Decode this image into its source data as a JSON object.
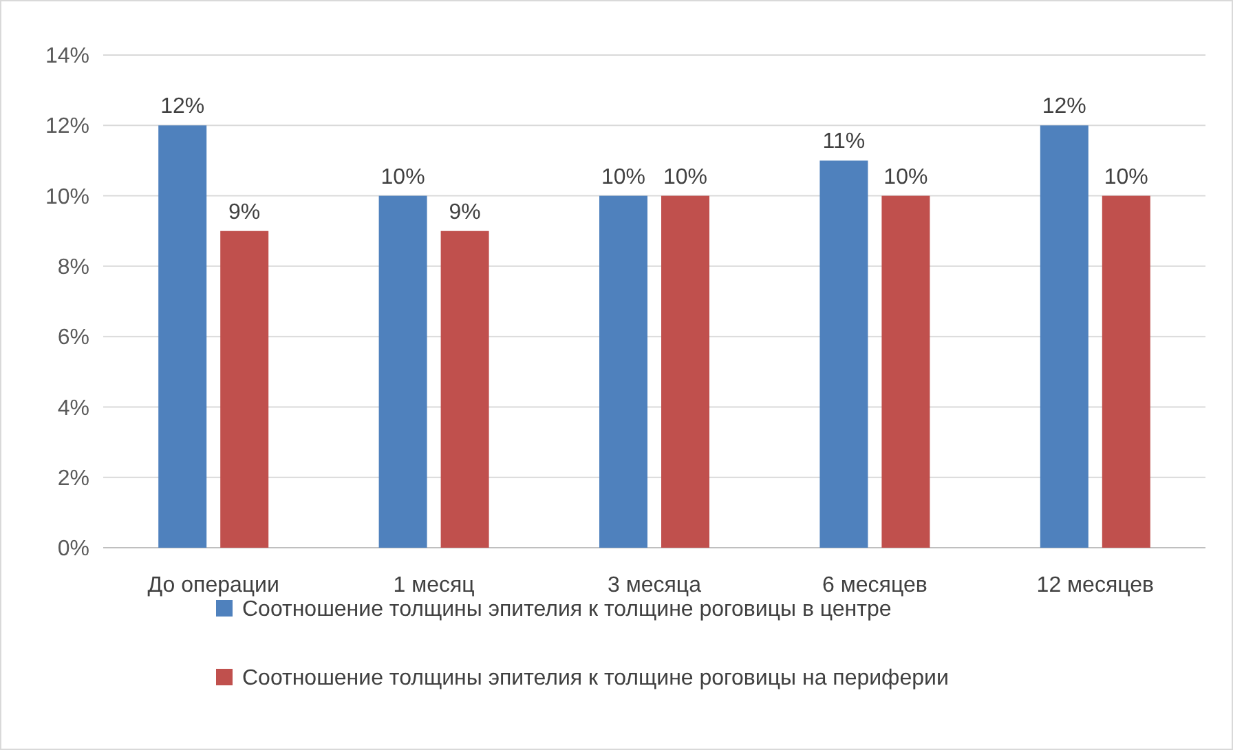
{
  "chart_data": {
    "type": "bar",
    "categories": [
      "До операции",
      "1 месяц",
      "3 месяца",
      "6 месяцев",
      "12 месяцев"
    ],
    "series": [
      {
        "name": "Соотношение толщины эпителия к толщине роговицы в центре",
        "color": "#4f81bd",
        "values": [
          12,
          10,
          10,
          11,
          12
        ],
        "value_labels": [
          "12%",
          "10%",
          "10%",
          "11%",
          "12%"
        ]
      },
      {
        "name": "Соотношение толщины эпителия к толщине роговицы на периферии",
        "color": "#c0504d",
        "values": [
          9,
          9,
          10,
          10,
          10
        ],
        "value_labels": [
          "9%",
          "9%",
          "10%",
          "10%",
          "10%"
        ]
      }
    ],
    "ylim": [
      0,
      14
    ],
    "yticks": [
      {
        "value": 0,
        "label": "0%"
      },
      {
        "value": 2,
        "label": "2%"
      },
      {
        "value": 4,
        "label": "4%"
      },
      {
        "value": 6,
        "label": "6%"
      },
      {
        "value": 8,
        "label": "8%"
      },
      {
        "value": 10,
        "label": "10%"
      },
      {
        "value": 12,
        "label": "12%"
      },
      {
        "value": 14,
        "label": "14%"
      }
    ],
    "grid": "y",
    "legend": "bottom"
  }
}
